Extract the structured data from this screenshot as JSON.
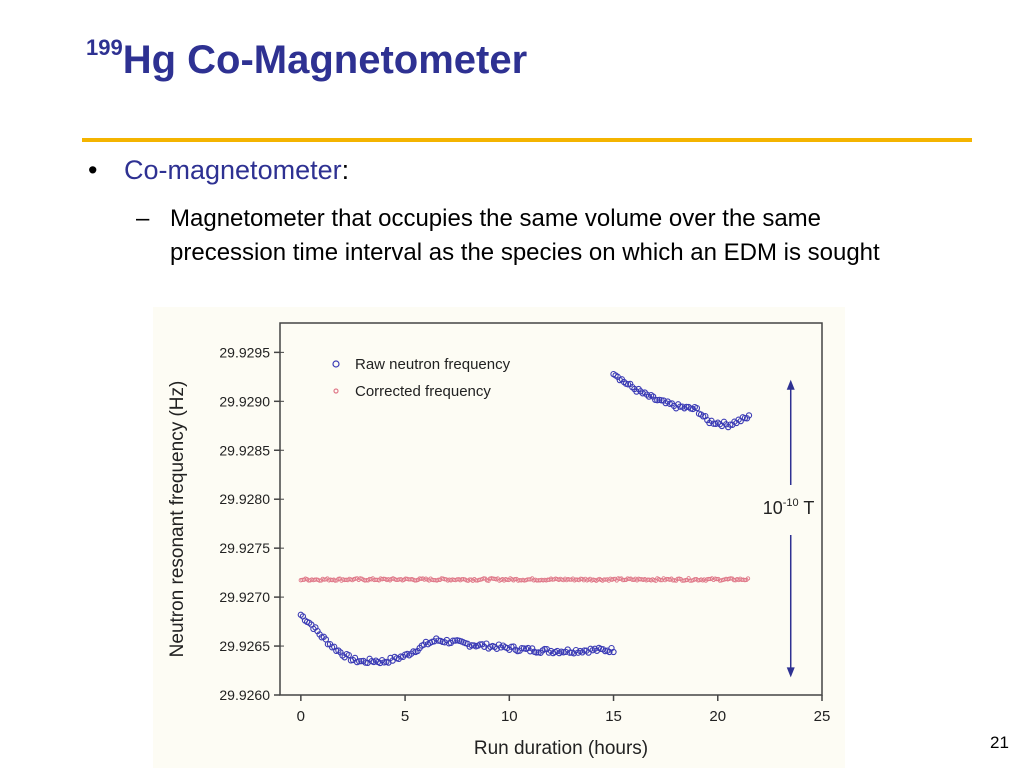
{
  "slide": {
    "title_sup": "199",
    "title_main": "Hg Co-Magnetometer",
    "bullet_marker": "•",
    "bullet1_term": "Co-magnetometer",
    "bullet1_colon": ":",
    "sub_marker": "–",
    "bullet2": "Magnetometer that occupies the same volume over the same precession time interval as the species on which an EDM is sought",
    "page_number": "21"
  },
  "colors": {
    "title": "#2E3192",
    "accent_rule": "#F4B400",
    "raw_series": "#3B3BB5",
    "corrected_series": "#E07A8A",
    "arrow": "#2E3192"
  },
  "chart_data": {
    "type": "scatter",
    "xlabel": "Run duration (hours)",
    "ylabel": "Neutron resonant frequency (Hz)",
    "xlim": [
      -1,
      25
    ],
    "ylim": [
      29.926,
      29.9298
    ],
    "xticks": [
      "0",
      "5",
      "10",
      "15",
      "20",
      "25"
    ],
    "yticks": [
      "29.9260",
      "29.9265",
      "29.9270",
      "29.9275",
      "29.9280",
      "29.9285",
      "29.9290",
      "29.9295"
    ],
    "legend_position": "top-left",
    "annotation": {
      "base": "10",
      "exponent": "-10",
      "unit": " T",
      "y_from": 29.9262,
      "y_to": 29.9292,
      "x": 23.5
    },
    "series": [
      {
        "name": "Raw neutron frequency",
        "marker": "open-circle",
        "color": "#3B3BB5",
        "segments": [
          {
            "x": [
              0.0,
              0.5,
              1.0,
              1.5,
              2.0,
              2.5,
              3.0,
              3.5,
              4.0,
              5.0,
              6.0,
              6.5,
              7.0,
              8.0,
              9.0,
              10.0,
              11.0,
              12.0,
              13.0,
              14.0,
              15.0
            ],
            "y": [
              29.92682,
              29.92672,
              29.9266,
              29.9265,
              29.92642,
              29.92636,
              29.92634,
              29.92635,
              29.92634,
              29.9264,
              29.92652,
              29.92656,
              29.92655,
              29.92652,
              29.9265,
              29.92648,
              29.92646,
              29.92645,
              29.92645,
              29.92646,
              29.92646
            ]
          },
          {
            "x": [
              15.0,
              15.5,
              16.0,
              16.5,
              17.0,
              17.5,
              18.0,
              18.5,
              19.0,
              19.5,
              20.0,
              20.5,
              21.0,
              21.5
            ],
            "y": [
              29.9293,
              29.9292,
              29.92913,
              29.92907,
              29.92902,
              29.92898,
              29.92895,
              29.92893,
              29.92892,
              29.9288,
              29.92878,
              29.92876,
              29.9288,
              29.92884
            ]
          }
        ]
      },
      {
        "name": "Corrected frequency",
        "marker": "small-circle",
        "color": "#E07A8A",
        "segments": [
          {
            "x": [
              0.0,
              21.5
            ],
            "y": [
              29.92718,
              29.92718
            ]
          }
        ]
      }
    ]
  }
}
